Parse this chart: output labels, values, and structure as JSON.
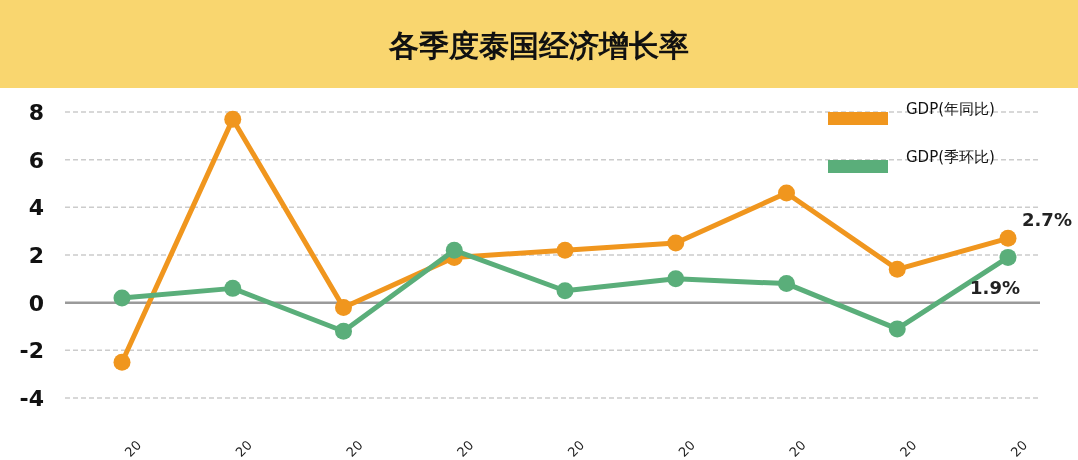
{
  "chart_data": {
    "type": "line",
    "title": "各季度泰国经济增长率",
    "categories": [
      "20",
      "20",
      "20",
      "20",
      "20",
      "20",
      "20",
      "20",
      "20"
    ],
    "series": [
      {
        "name": "GDP(年同比)",
        "color": "#f0961e",
        "values": [
          -2.5,
          7.7,
          -0.2,
          1.9,
          2.2,
          2.5,
          4.6,
          1.4,
          2.7
        ],
        "value_labels": [
          null,
          null,
          null,
          null,
          null,
          null,
          null,
          null,
          "2.7%"
        ]
      },
      {
        "name": "GDP(季环比)",
        "color": "#5aae7a",
        "values": [
          0.2,
          0.6,
          -1.2,
          2.2,
          0.5,
          1.0,
          0.8,
          -1.1,
          1.9
        ],
        "value_labels": [
          null,
          null,
          null,
          null,
          null,
          null,
          null,
          null,
          "1.9%"
        ]
      }
    ],
    "ylim": [
      -4,
      8
    ],
    "yticks": [
      -4,
      -2,
      0,
      2,
      4,
      6,
      8
    ],
    "grid": "y",
    "legend": "top right",
    "marker": "circle",
    "line_style": "solid"
  }
}
